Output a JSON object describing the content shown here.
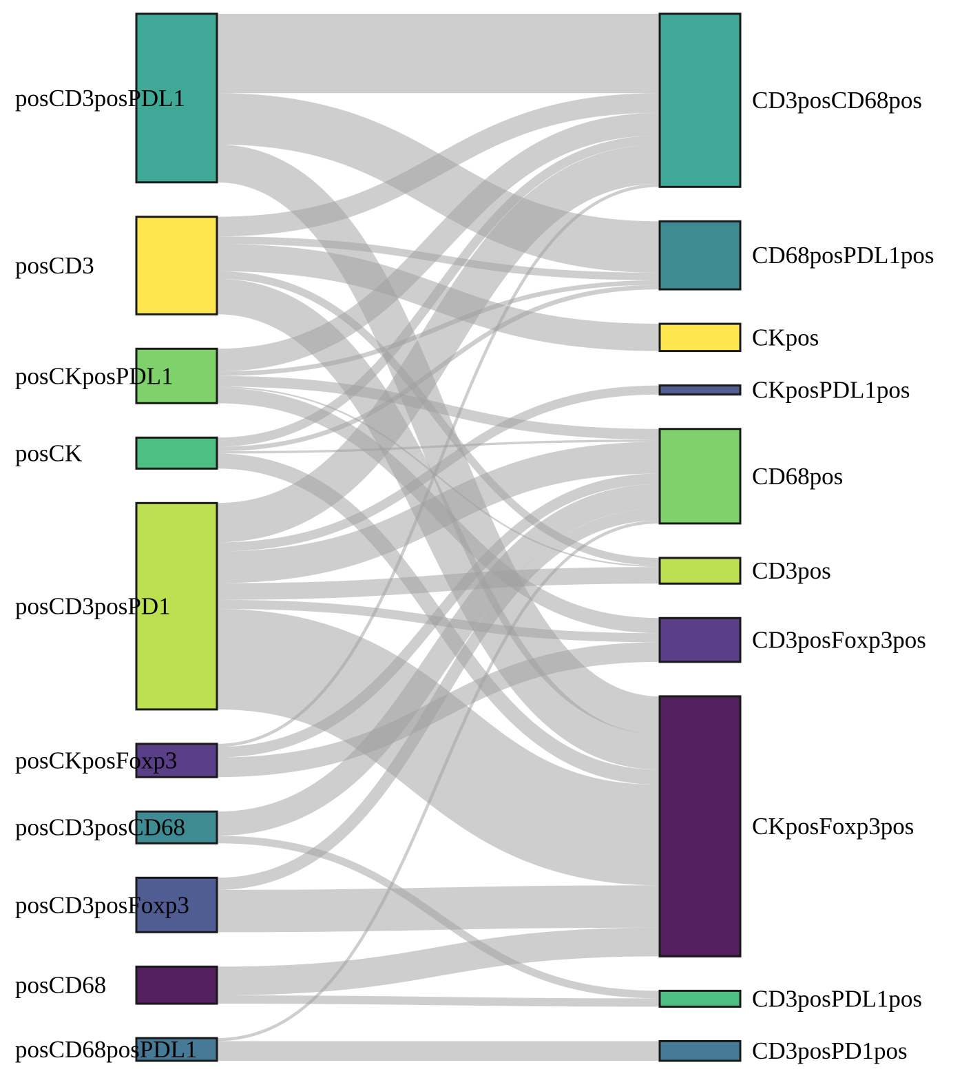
{
  "chart_data": {
    "type": "sankey",
    "source_nodes": [
      {
        "name": "posCD3posPDL1",
        "color": "#3fa896"
      },
      {
        "name": "posCD3",
        "color": "#fde64f"
      },
      {
        "name": "posCKposPDL1",
        "color": "#7fd16b"
      },
      {
        "name": "posCK",
        "color": "#4dbf82"
      },
      {
        "name": "posCD3posPD1",
        "color": "#bde052"
      },
      {
        "name": "posCKposFoxp3",
        "color": "#5a3f88"
      },
      {
        "name": "posCD3posCD68",
        "color": "#3f8b94"
      },
      {
        "name": "posCD3posFoxp3",
        "color": "#4f5d93"
      },
      {
        "name": "posCD68",
        "color": "#531f5f"
      },
      {
        "name": "posCD68posPDL1",
        "color": "#477a96"
      }
    ],
    "target_nodes": [
      {
        "name": "CD3posCD68pos",
        "color": "#3fa896"
      },
      {
        "name": "CD68posPDL1pos",
        "color": "#3f8b94"
      },
      {
        "name": "CKpos",
        "color": "#fde64f"
      },
      {
        "name": "CKposPDL1pos",
        "color": "#4f5d93"
      },
      {
        "name": "CD68pos",
        "color": "#7fd16b"
      },
      {
        "name": "CD3pos",
        "color": "#bde052"
      },
      {
        "name": "CD3posFoxp3pos",
        "color": "#5a3f88"
      },
      {
        "name": "CKposFoxp3pos",
        "color": "#531f5f"
      },
      {
        "name": "CD3posPDL1pos",
        "color": "#4dbf82"
      },
      {
        "name": "CD3posPD1pos",
        "color": "#477a96"
      }
    ],
    "links": [
      {
        "source": "posCD3posPDL1",
        "target": "CD3posCD68pos",
        "value": 105
      },
      {
        "source": "posCD3posPDL1",
        "target": "CD68posPDL1pos",
        "value": 68
      },
      {
        "source": "posCD3posPDL1",
        "target": "CKposFoxp3pos",
        "value": 50
      },
      {
        "source": "posCD3",
        "target": "CD3posCD68pos",
        "value": 26
      },
      {
        "source": "posCD3",
        "target": "CD68posPDL1pos",
        "value": 10
      },
      {
        "source": "posCD3",
        "target": "CKpos",
        "value": 36
      },
      {
        "source": "posCD3",
        "target": "CD3pos",
        "value": 10
      },
      {
        "source": "posCD3",
        "target": "CKposFoxp3pos",
        "value": 47
      },
      {
        "source": "posCKposPDL1",
        "target": "CD3posCD68pos",
        "value": 30
      },
      {
        "source": "posCKposPDL1",
        "target": "CD68posPDL1pos",
        "value": 6
      },
      {
        "source": "posCKposPDL1",
        "target": "CD68pos",
        "value": 14
      },
      {
        "source": "posCKposPDL1",
        "target": "CD3pos",
        "value": 2
      },
      {
        "source": "posCKposPDL1",
        "target": "CD3posFoxp3pos",
        "value": 20
      },
      {
        "source": "posCK",
        "target": "CD3posCD68pos",
        "value": 12
      },
      {
        "source": "posCK",
        "target": "CD68posPDL1pos",
        "value": 6
      },
      {
        "source": "posCK",
        "target": "CD68pos",
        "value": 3
      },
      {
        "source": "posCK",
        "target": "CKposFoxp3pos",
        "value": 20
      },
      {
        "source": "posCD3posPD1",
        "target": "CD3posCD68pos",
        "value": 52
      },
      {
        "source": "posCD3posPD1",
        "target": "CD68pos",
        "value": 42
      },
      {
        "source": "posCD3posPD1",
        "target": "CKposPDL1pos",
        "value": 12
      },
      {
        "source": "posCD3posPD1",
        "target": "CD3pos",
        "value": 22
      },
      {
        "source": "posCD3posPD1",
        "target": "CD3posFoxp3pos",
        "value": 12
      },
      {
        "source": "posCD3posPD1",
        "target": "CKposFoxp3pos",
        "value": 133
      },
      {
        "source": "posCKposFoxp3",
        "target": "CD3posCD68pos",
        "value": 4
      },
      {
        "source": "posCKposFoxp3",
        "target": "CD68pos",
        "value": 14
      },
      {
        "source": "posCKposFoxp3",
        "target": "CD3posFoxp3pos",
        "value": 26
      },
      {
        "source": "posCD3posCD68",
        "target": "CD68pos",
        "value": 32
      },
      {
        "source": "posCD3posCD68",
        "target": "CD3posPDL1pos",
        "value": 10
      },
      {
        "source": "posCD3posFoxp3",
        "target": "CD68pos",
        "value": 16
      },
      {
        "source": "posCD3posFoxp3",
        "target": "CKposFoxp3pos",
        "value": 56
      },
      {
        "source": "posCD68",
        "target": "CKposFoxp3pos",
        "value": 38
      },
      {
        "source": "posCD68",
        "target": "CD3posPDL1pos",
        "value": 11
      },
      {
        "source": "posCD68posPDL1",
        "target": "CD68pos",
        "value": 4
      },
      {
        "source": "posCD68posPDL1",
        "target": "CD3posPD1pos",
        "value": 26
      }
    ]
  }
}
